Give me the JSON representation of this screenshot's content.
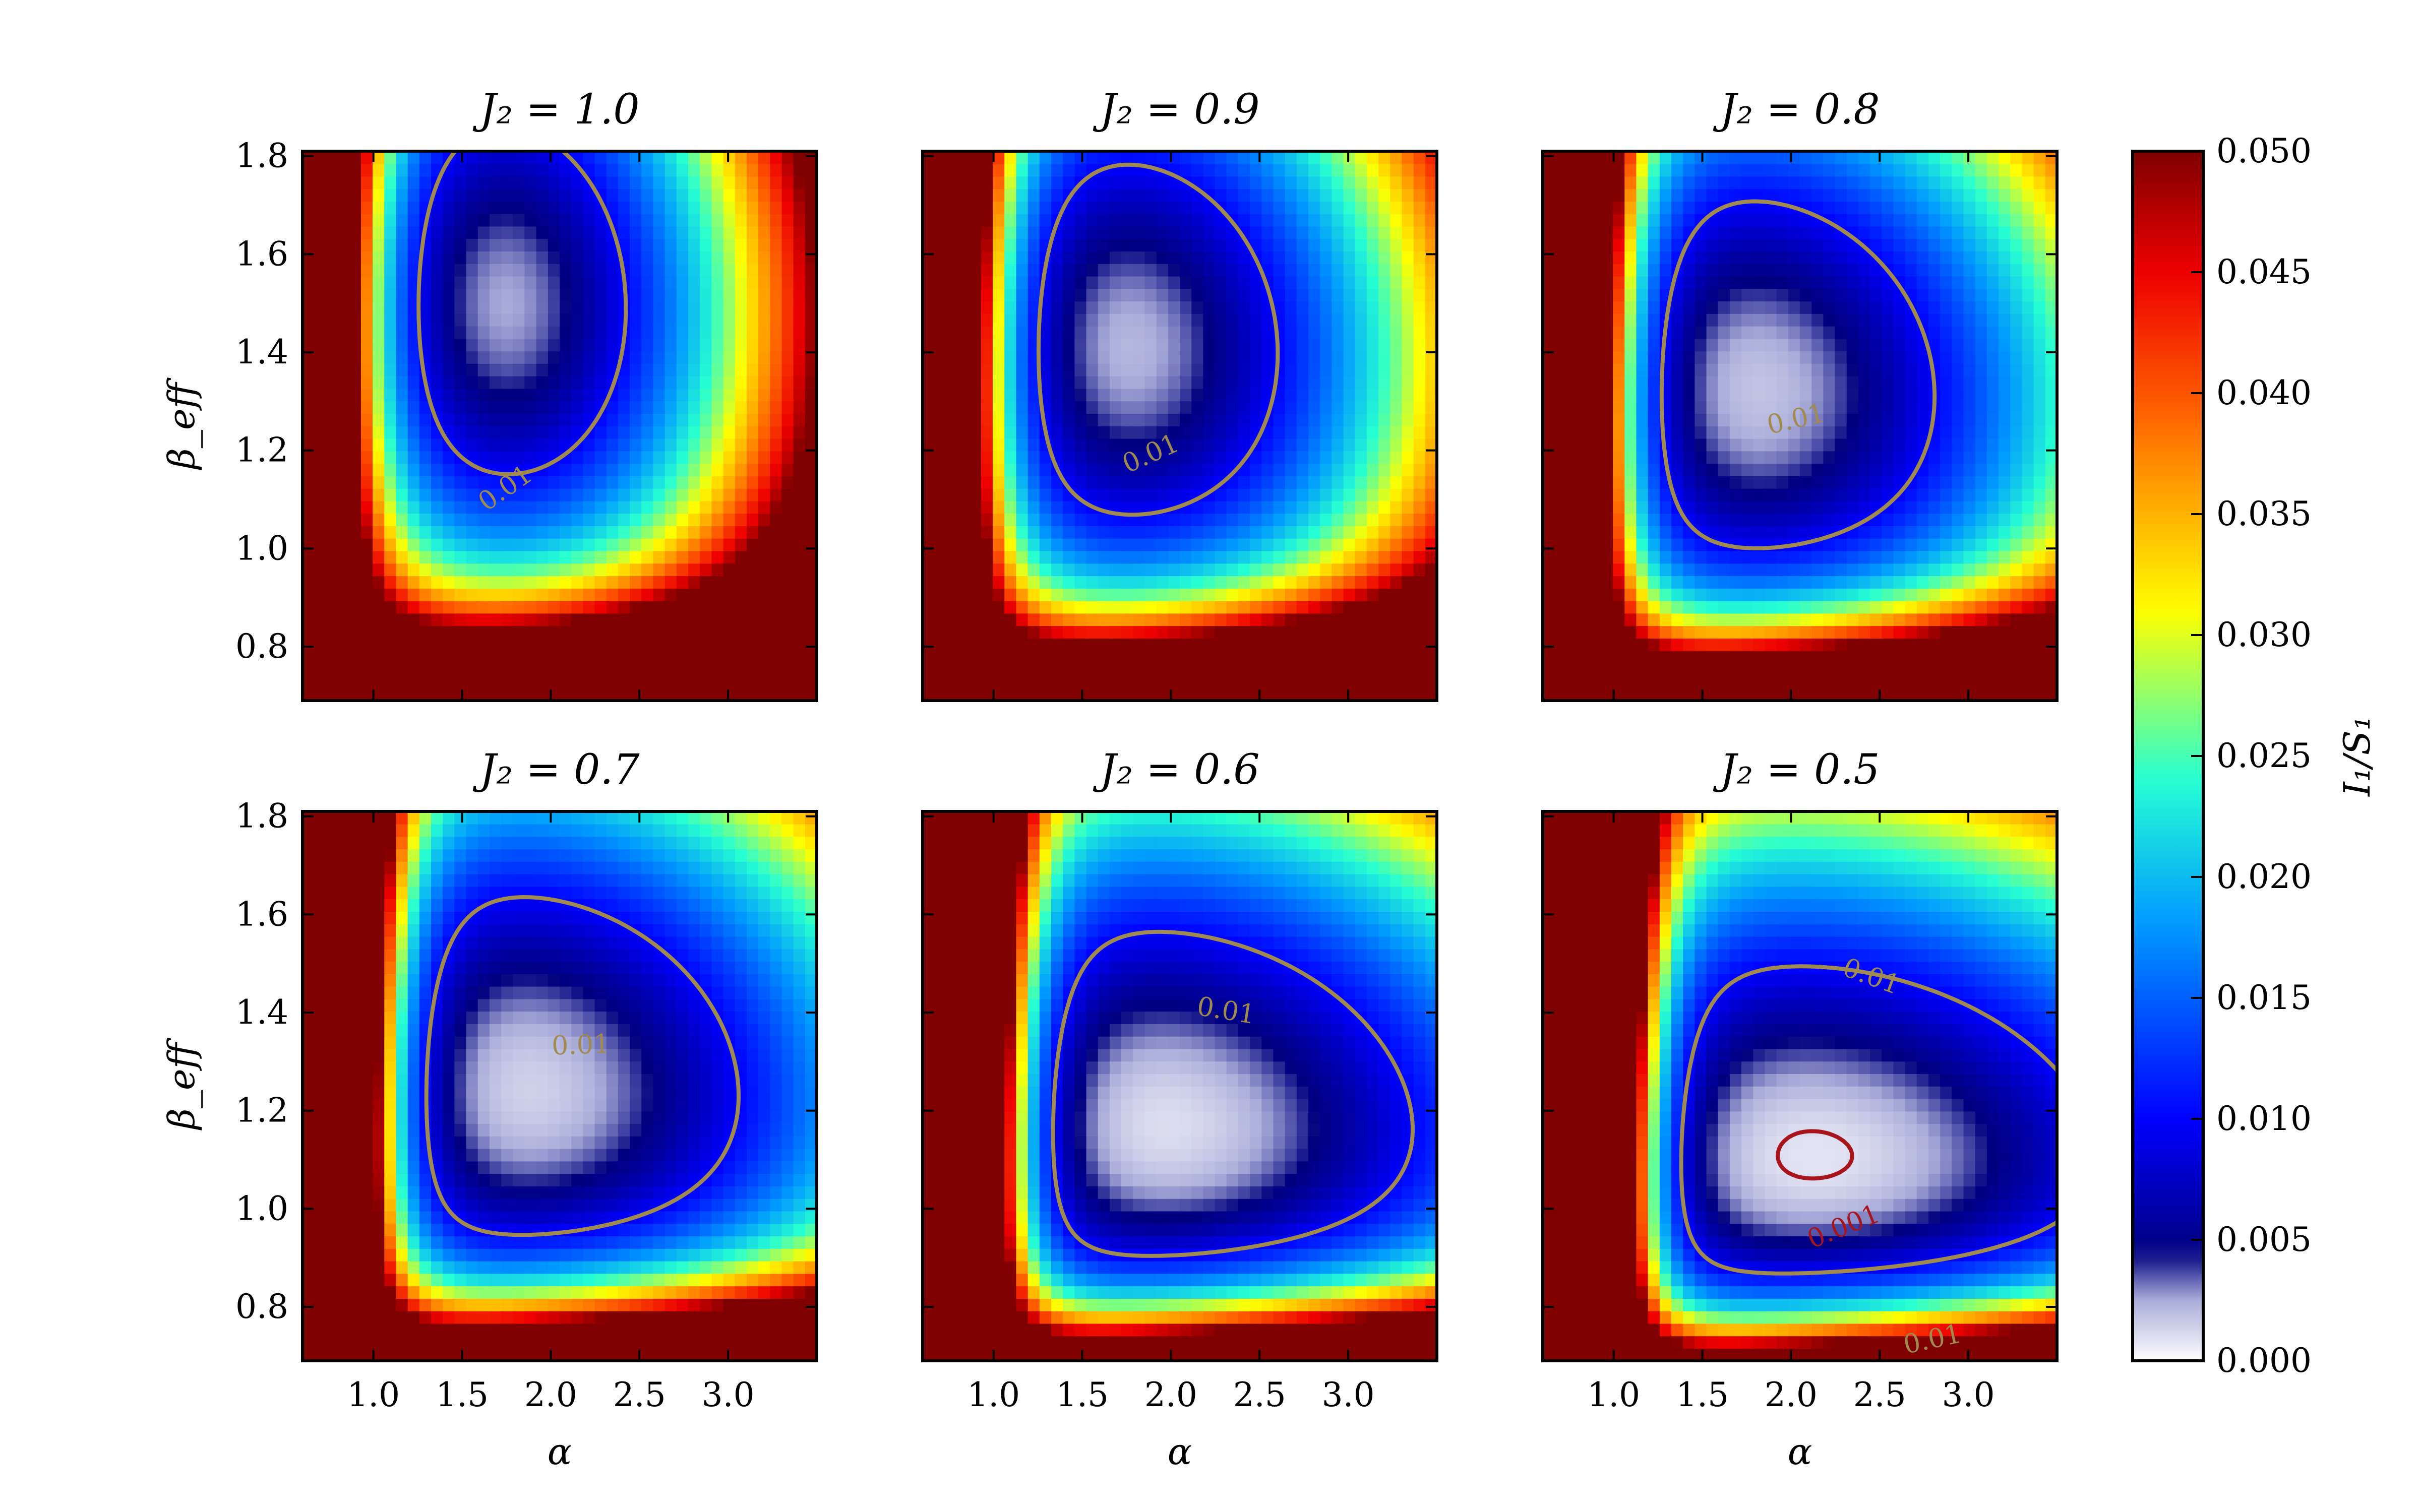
{
  "chart_data": {
    "type": "heatmap",
    "grid": false,
    "colormap": {
      "name": "custom: white-to-navy (0–0.005), then jet (0.005–0.050)",
      "stops": [
        {
          "value": 0.0,
          "color": "#ffffff"
        },
        {
          "value": 0.0025,
          "color": "#a9acd9"
        },
        {
          "value": 0.0045,
          "color": "#00007f"
        },
        {
          "value": 0.01,
          "color": "#0000ff"
        },
        {
          "value": 0.018,
          "color": "#0099ff"
        },
        {
          "value": 0.024,
          "color": "#26ffd3"
        },
        {
          "value": 0.031,
          "color": "#ffff00"
        },
        {
          "value": 0.039,
          "color": "#ff6600"
        },
        {
          "value": 0.045,
          "color": "#ee0000"
        },
        {
          "value": 0.05,
          "color": "#7f0000"
        }
      ]
    },
    "colorbar": {
      "label": "I₁/S₁",
      "range": [
        0.0,
        0.05
      ],
      "tick_labels": [
        "0.000",
        "0.005",
        "0.010",
        "0.015",
        "0.020",
        "0.025",
        "0.030",
        "0.035",
        "0.040",
        "0.045",
        "0.050"
      ]
    },
    "xlabel": "α",
    "ylabel": "β_eff",
    "xlim": [
      0.6,
      3.5
    ],
    "ylim": [
      0.69,
      1.81
    ],
    "x_tick_labels": [
      "1.0",
      "1.5",
      "2.0",
      "2.5",
      "3.0"
    ],
    "y_tick_labels": [
      "0.8",
      "1.0",
      "1.2",
      "1.4",
      "1.6",
      "1.8"
    ],
    "contour_levels": [
      {
        "level": 0.01,
        "label": "0.01",
        "color": "#a08a50"
      },
      {
        "level": 0.001,
        "label": "0.001",
        "color": "#a8141c"
      },
      {
        "level": 0.0001,
        "label": "",
        "color": "#000000"
      }
    ],
    "panels": [
      {
        "title": "J₂ = 1.0",
        "J2": 1.0,
        "minimum": {
          "alpha": 1.7,
          "beta_eff": 1.5,
          "value": 0.0022
        },
        "contour_labels": [
          "0.01"
        ]
      },
      {
        "title": "J₂ = 0.9",
        "J2": 0.9,
        "minimum": {
          "alpha": 1.68,
          "beta_eff": 1.43,
          "value": 0.0018
        },
        "contour_labels": [
          "0.01"
        ]
      },
      {
        "title": "J₂ = 0.8",
        "J2": 0.8,
        "minimum": {
          "alpha": 1.66,
          "beta_eff": 1.39,
          "value": 0.0014
        },
        "contour_labels": [
          "0.01"
        ]
      },
      {
        "title": "J₂ = 0.7",
        "J2": 0.7,
        "minimum": {
          "alpha": 1.62,
          "beta_eff": 1.27,
          "value": 0.0008
        },
        "contour_labels": [
          "0.01"
        ]
      },
      {
        "title": "J₂ = 0.6",
        "J2": 0.6,
        "minimum": {
          "alpha": 1.7,
          "beta_eff": 1.16,
          "value": 0.0006
        },
        "contour_labels": [
          "0.01"
        ]
      },
      {
        "title": "J₂ = 0.5",
        "J2": 0.5,
        "minimum": {
          "alpha": 2.12,
          "beta_eff": 1.05,
          "value": 0.0001
        },
        "contour_labels": [
          "0.01",
          "0.001",
          "0.01"
        ]
      }
    ]
  }
}
